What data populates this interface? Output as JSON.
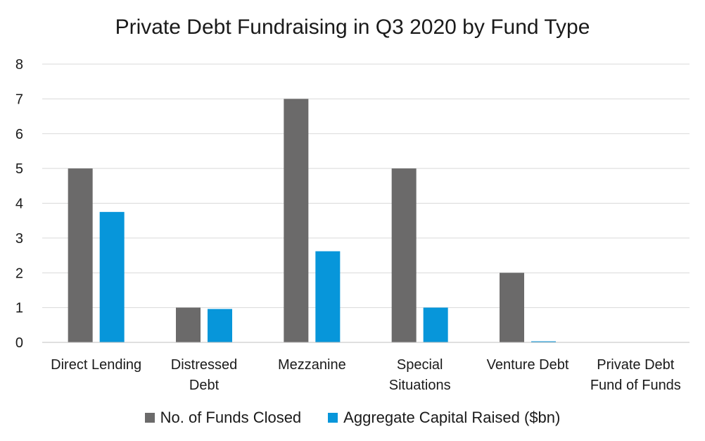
{
  "chart_data": {
    "type": "bar",
    "title": "Private Debt Fundraising in Q3 2020 by Fund Type",
    "xlabel": "",
    "ylabel": "",
    "ylim": [
      0,
      8
    ],
    "yticks": [
      "0",
      "1",
      "2",
      "3",
      "4",
      "5",
      "6",
      "7",
      "8"
    ],
    "categories": [
      [
        "Direct Lending"
      ],
      [
        "Distressed",
        "Debt"
      ],
      [
        "Mezzanine"
      ],
      [
        "Special",
        "Situations"
      ],
      [
        "Venture Debt"
      ],
      [
        "Private Debt",
        "Fund of Funds"
      ]
    ],
    "series": [
      {
        "name": "No. of Funds Closed",
        "color": "#6b6a6a",
        "values": [
          5,
          1,
          7,
          5,
          2,
          0
        ]
      },
      {
        "name": "Aggregate Capital Raised ($bn)",
        "color": "#0796da",
        "values": [
          3.75,
          0.96,
          2.62,
          1.0,
          0.03,
          0
        ]
      }
    ],
    "grid": true,
    "legend_position": "bottom",
    "gridline_color": "#d9d9d9"
  }
}
